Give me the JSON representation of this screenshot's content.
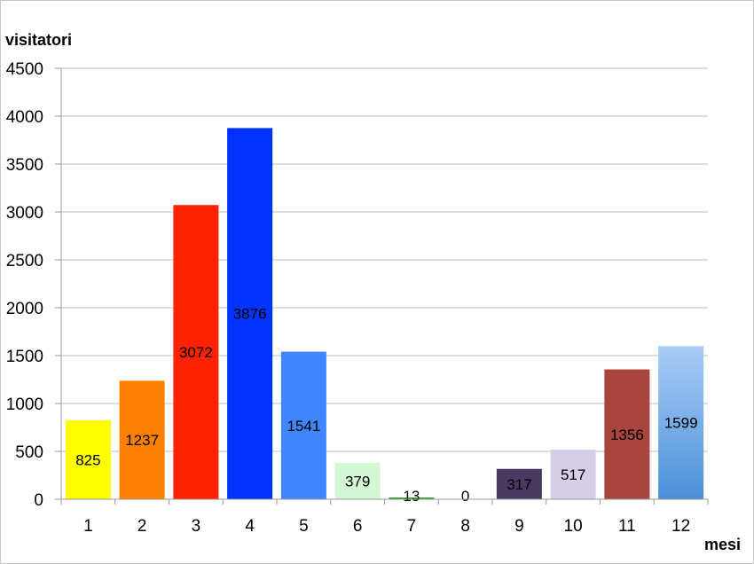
{
  "chart_data": {
    "type": "bar",
    "title": "",
    "xlabel": "mesi",
    "ylabel": "visitatori",
    "categories": [
      "1",
      "2",
      "3",
      "4",
      "5",
      "6",
      "7",
      "8",
      "9",
      "10",
      "11",
      "12"
    ],
    "values": [
      825,
      1237,
      3072,
      3876,
      1541,
      379,
      13,
      0,
      317,
      517,
      1356,
      1599
    ],
    "colors": [
      "#ffff00",
      "#ff7f00",
      "#ff2200",
      "#0033ff",
      "#3f86ff",
      "#d4f7d4",
      "#33a033",
      "#ffffff",
      "#4a3a62",
      "#d6cde6",
      "#a8463e",
      "#8ab8f0"
    ],
    "ylim": [
      0,
      4500
    ],
    "yticks": [
      0,
      500,
      1000,
      1500,
      2000,
      2500,
      3000,
      3500,
      4000,
      4500
    ],
    "grid": true,
    "legend": "none"
  }
}
